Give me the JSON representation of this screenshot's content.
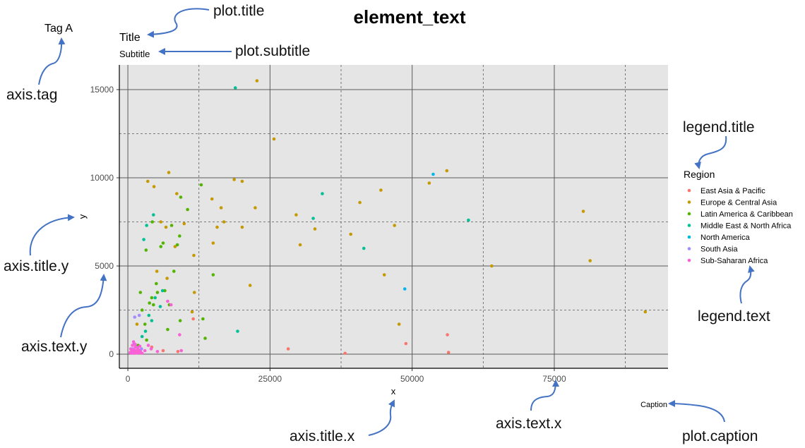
{
  "header": {
    "title": "element_text"
  },
  "labels": {
    "tag": "Tag A",
    "title": "Title",
    "subtitle": "Subtitle",
    "caption": "Caption",
    "x_title": "x",
    "y_title": "y",
    "legend_title": "Region"
  },
  "annotations": {
    "plot_title": "plot.title",
    "plot_subtitle": "plot.subtitle",
    "axis_tag": "axis.tag",
    "axis_title_y": "axis.title.y",
    "axis_text_y": "axis.text.y",
    "axis_title_x": "axis.title.x",
    "axis_text_x": "axis.text.x",
    "legend_title": "legend.title",
    "legend_text": "legend.text",
    "plot_caption": "plot.caption"
  },
  "colors": {
    "panel": "#e5e5e5",
    "major_grid": "#5a5a5a",
    "minor_grid": "#5a5a5a",
    "arrow": "#4472c4"
  },
  "chart_data": {
    "type": "scatter",
    "title": "Title",
    "subtitle": "Subtitle",
    "caption": "Caption",
    "xlabel": "x",
    "ylabel": "y",
    "xlim": [
      -1500,
      95000
    ],
    "ylim": [
      -800,
      16400
    ],
    "x_ticks": [
      0,
      25000,
      50000,
      75000
    ],
    "y_ticks": [
      0,
      5000,
      10000,
      15000
    ],
    "grid": true,
    "legend_position": "right",
    "legend_title": "Region",
    "series": [
      {
        "name": "East Asia & Pacific",
        "color": "#f8766d",
        "points": [
          [
            1000,
            100
          ],
          [
            1600,
            200
          ],
          [
            2300,
            80
          ],
          [
            4200,
            400
          ],
          [
            6200,
            200
          ],
          [
            8800,
            150
          ],
          [
            11500,
            2000
          ],
          [
            28200,
            300
          ],
          [
            38200,
            50
          ],
          [
            48900,
            600
          ],
          [
            56200,
            1100
          ],
          [
            56400,
            100
          ]
        ]
      },
      {
        "name": "Europe & Central Asia",
        "color": "#c49a00",
        "points": [
          [
            3500,
            9800
          ],
          [
            4600,
            9500
          ],
          [
            5100,
            4700
          ],
          [
            6700,
            7200
          ],
          [
            7200,
            10300
          ],
          [
            8600,
            9100
          ],
          [
            8300,
            6100
          ],
          [
            6900,
            4300
          ],
          [
            9900,
            7400
          ],
          [
            11300,
            2400
          ],
          [
            11600,
            5600
          ],
          [
            11700,
            3500
          ],
          [
            14800,
            8800
          ],
          [
            15000,
            6300
          ],
          [
            15700,
            7200
          ],
          [
            16400,
            8300
          ],
          [
            16900,
            7500
          ],
          [
            18700,
            9900
          ],
          [
            20100,
            7200
          ],
          [
            20100,
            9800
          ],
          [
            21500,
            3900
          ],
          [
            22400,
            8300
          ],
          [
            22700,
            15500
          ],
          [
            25700,
            12200
          ],
          [
            29600,
            7900
          ],
          [
            30300,
            6200
          ],
          [
            32900,
            7100
          ],
          [
            39200,
            6800
          ],
          [
            40800,
            8600
          ],
          [
            44500,
            9300
          ],
          [
            45100,
            4500
          ],
          [
            46900,
            7300
          ],
          [
            47700,
            1700
          ],
          [
            53000,
            9700
          ],
          [
            56100,
            10400
          ],
          [
            64000,
            5000
          ],
          [
            80100,
            8100
          ],
          [
            81300,
            5300
          ],
          [
            91000,
            2400
          ],
          [
            5800,
            7500
          ],
          [
            1600,
            1700
          ]
        ]
      },
      {
        "name": "Latin America & Caribbean",
        "color": "#53b400",
        "points": [
          [
            2200,
            3500
          ],
          [
            2500,
            2500
          ],
          [
            3200,
            5900
          ],
          [
            3800,
            2900
          ],
          [
            4300,
            7500
          ],
          [
            5000,
            4000
          ],
          [
            5800,
            6100
          ],
          [
            6200,
            6300
          ],
          [
            7300,
            2800
          ],
          [
            7700,
            7300
          ],
          [
            8100,
            4700
          ],
          [
            8700,
            6200
          ],
          [
            9100,
            6700
          ],
          [
            9300,
            8900
          ],
          [
            10500,
            8200
          ],
          [
            12900,
            9600
          ],
          [
            13200,
            2000
          ],
          [
            13600,
            900
          ],
          [
            15000,
            4500
          ],
          [
            1800,
            500
          ],
          [
            3000,
            1700
          ],
          [
            4200,
            3200
          ],
          [
            5200,
            3500
          ],
          [
            6500,
            3600
          ],
          [
            7000,
            1400
          ],
          [
            9200,
            1900
          ],
          [
            3300,
            800
          ],
          [
            4500,
            2800
          ]
        ]
      },
      {
        "name": "Middle East & North Africa",
        "color": "#00c094",
        "points": [
          [
            2800,
            6500
          ],
          [
            3300,
            7300
          ],
          [
            3100,
            1300
          ],
          [
            3700,
            2200
          ],
          [
            4500,
            7900
          ],
          [
            4800,
            3200
          ],
          [
            5700,
            2700
          ],
          [
            6100,
            3600
          ],
          [
            18900,
            15100
          ],
          [
            19300,
            1300
          ],
          [
            32600,
            7700
          ],
          [
            34200,
            9100
          ],
          [
            41500,
            6000
          ],
          [
            59900,
            7600
          ],
          [
            2500,
            1000
          ],
          [
            4200,
            1900
          ]
        ]
      },
      {
        "name": "North America",
        "color": "#00b6eb",
        "points": [
          [
            48700,
            3700
          ],
          [
            53700,
            10200
          ]
        ]
      },
      {
        "name": "South Asia",
        "color": "#a58aff",
        "points": [
          [
            1200,
            2100
          ],
          [
            2000,
            2200
          ],
          [
            800,
            300
          ],
          [
            1500,
            400
          ],
          [
            1100,
            600
          ],
          [
            2400,
            300
          ],
          [
            1700,
            150
          ]
        ]
      },
      {
        "name": "Sub-Saharan Africa",
        "color": "#fb61d7",
        "points": [
          [
            400,
            100
          ],
          [
            500,
            300
          ],
          [
            600,
            50
          ],
          [
            700,
            200
          ],
          [
            800,
            500
          ],
          [
            900,
            150
          ],
          [
            1000,
            50
          ],
          [
            1100,
            250
          ],
          [
            1200,
            120
          ],
          [
            1300,
            400
          ],
          [
            1400,
            80
          ],
          [
            1500,
            180
          ],
          [
            1600,
            60
          ],
          [
            1700,
            350
          ],
          [
            1800,
            100
          ],
          [
            1900,
            250
          ],
          [
            2000,
            80
          ],
          [
            2200,
            150
          ],
          [
            2500,
            50
          ],
          [
            3000,
            200
          ],
          [
            3600,
            500
          ],
          [
            4100,
            300
          ],
          [
            5200,
            150
          ],
          [
            7000,
            3000
          ],
          [
            7600,
            2800
          ],
          [
            9100,
            1100
          ],
          [
            9400,
            200
          ],
          [
            1000,
            700
          ],
          [
            1300,
            550
          ],
          [
            2100,
            450
          ]
        ]
      }
    ]
  }
}
